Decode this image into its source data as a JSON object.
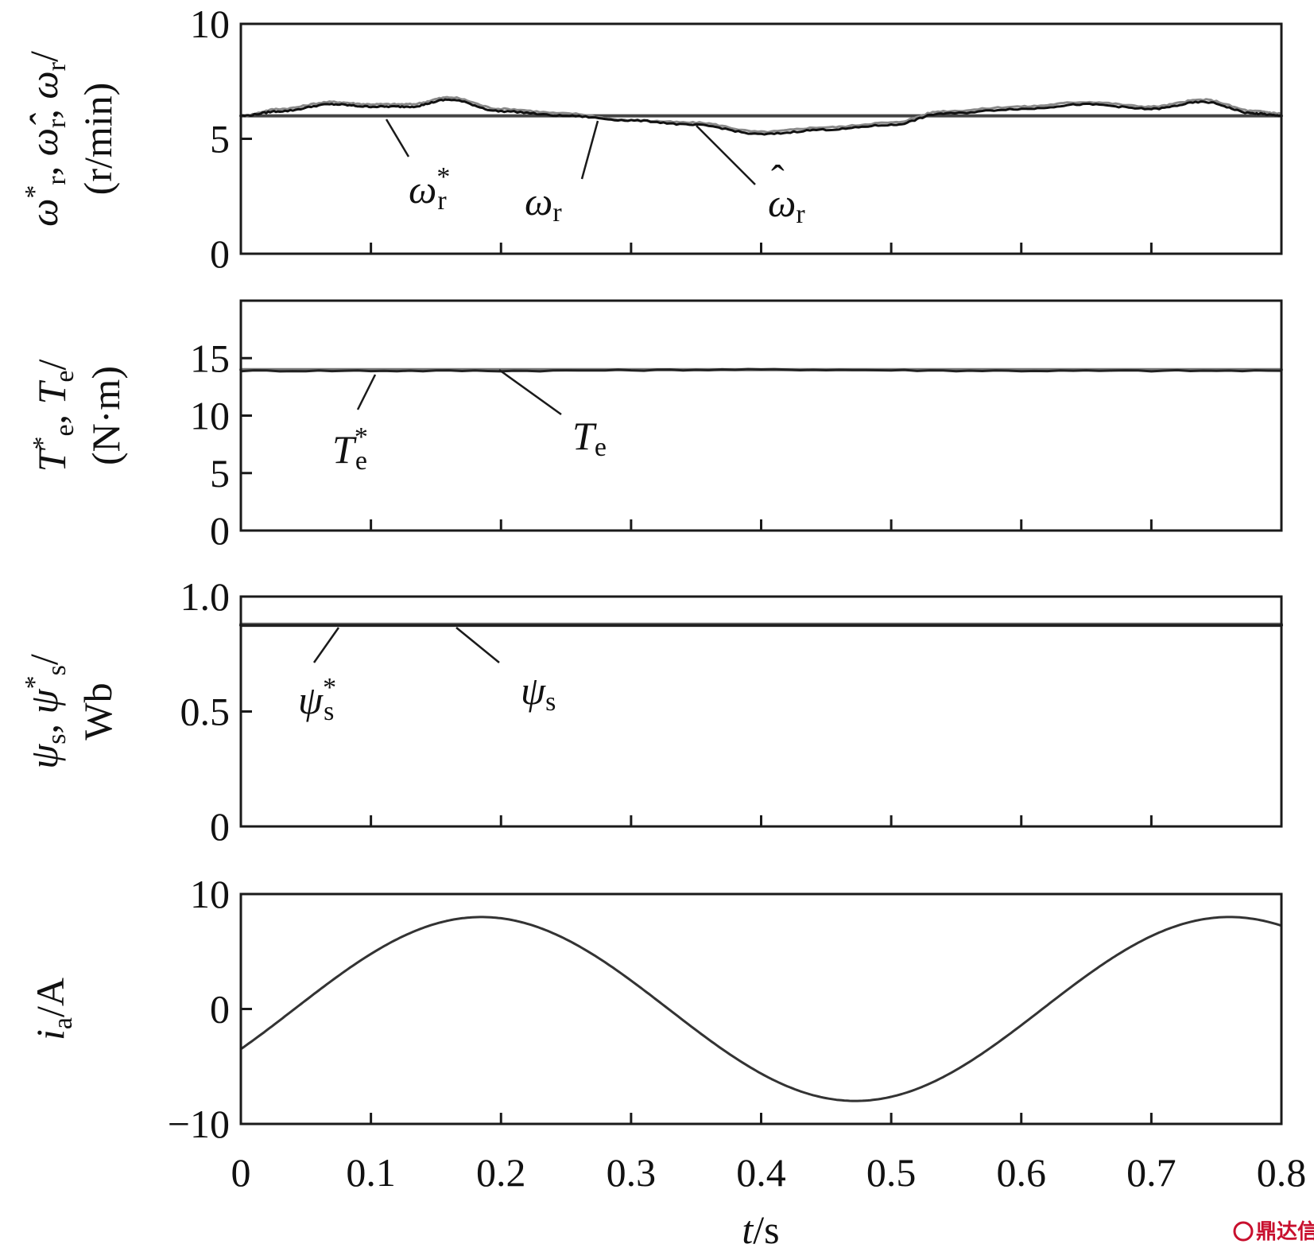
{
  "chart_data": [
    {
      "type": "line",
      "panel": "speed",
      "ylim": [
        0,
        10
      ],
      "yticks": [
        "0",
        "5",
        "10"
      ],
      "ytick_values": [
        0,
        5,
        10
      ],
      "ylabel_lines": [
        "ω*r, ω̂r, ωr/",
        "(r/min)"
      ],
      "series": [
        {
          "name": "ω*r",
          "x": [
            0,
            0.8
          ],
          "y": [
            6.0,
            6.0
          ],
          "color": "#444444"
        },
        {
          "name": "ωr",
          "x": [
            0,
            0.03,
            0.07,
            0.1,
            0.13,
            0.16,
            0.2,
            0.25,
            0.3,
            0.35,
            0.4,
            0.45,
            0.5,
            0.54,
            0.6,
            0.65,
            0.7,
            0.74,
            0.78,
            0.8
          ],
          "y": [
            6.0,
            6.3,
            6.6,
            6.5,
            6.5,
            6.8,
            6.3,
            6.1,
            5.8,
            5.7,
            5.3,
            5.5,
            5.7,
            6.2,
            6.4,
            6.6,
            6.4,
            6.7,
            6.2,
            6.1
          ],
          "color": "#8a8a8a"
        },
        {
          "name": "ω̂r",
          "x": [
            0,
            0.03,
            0.07,
            0.1,
            0.13,
            0.16,
            0.2,
            0.25,
            0.3,
            0.35,
            0.4,
            0.45,
            0.5,
            0.54,
            0.6,
            0.65,
            0.7,
            0.74,
            0.78,
            0.8
          ],
          "y": [
            6.0,
            6.2,
            6.5,
            6.4,
            6.4,
            6.7,
            6.2,
            6.0,
            5.8,
            5.6,
            5.2,
            5.4,
            5.6,
            6.1,
            6.3,
            6.5,
            6.3,
            6.6,
            6.1,
            6.0
          ],
          "color": "#111111"
        }
      ],
      "annotations": [
        {
          "label": "ω",
          "sub": "r",
          "sup": "*",
          "hat": false
        },
        {
          "label": "ω",
          "sub": "r",
          "sup": "",
          "hat": false
        },
        {
          "label": "ω",
          "sub": "r",
          "sup": "",
          "hat": true
        }
      ]
    },
    {
      "type": "line",
      "panel": "torque",
      "ylim": [
        0,
        20
      ],
      "yticks": [
        "0",
        "5",
        "10",
        "15"
      ],
      "ytick_values": [
        0,
        5,
        10,
        15
      ],
      "ylabel_lines": [
        "T*e, Te/",
        "(N·m)"
      ],
      "series": [
        {
          "name": "T*e",
          "x": [
            0,
            0.8
          ],
          "y": [
            14.0,
            14.0
          ],
          "color": "#777777"
        },
        {
          "name": "Te",
          "x": [
            0,
            0.2,
            0.4,
            0.6,
            0.8
          ],
          "y": [
            13.9,
            13.9,
            14.0,
            13.9,
            13.9
          ],
          "color": "#222222"
        }
      ],
      "annotations": [
        {
          "label": "T",
          "sub": "e",
          "sup": "*"
        },
        {
          "label": "T",
          "sub": "e",
          "sup": ""
        }
      ]
    },
    {
      "type": "line",
      "panel": "flux",
      "ylim": [
        0,
        1.0
      ],
      "yticks": [
        "0",
        "0.5",
        "1.0"
      ],
      "ytick_values": [
        0,
        0.5,
        1.0
      ],
      "ylabel_lines": [
        "ψs, ψ*s/",
        "Wb"
      ],
      "series": [
        {
          "name": "ψ*s",
          "x": [
            0,
            0.8
          ],
          "y": [
            0.88,
            0.88
          ],
          "color": "#777777"
        },
        {
          "name": "ψs",
          "x": [
            0,
            0.8
          ],
          "y": [
            0.875,
            0.875
          ],
          "color": "#222222"
        }
      ],
      "annotations": [
        {
          "label": "ψ",
          "sub": "s",
          "sup": "*"
        },
        {
          "label": "ψ",
          "sub": "s",
          "sup": ""
        }
      ]
    },
    {
      "type": "line",
      "panel": "current",
      "ylim": [
        -10,
        10
      ],
      "yticks": [
        "−10",
        "0",
        "10"
      ],
      "ytick_values": [
        -10,
        0,
        10
      ],
      "ylabel_lines": [
        "ia/A"
      ],
      "series": [
        {
          "name": "ia",
          "amplitude": 8,
          "period_s": 0.575,
          "peak_time_s": 0.185,
          "x_range": [
            0,
            0.8
          ],
          "color": "#333333"
        }
      ]
    }
  ],
  "xaxis": {
    "xlim": [
      0,
      0.8
    ],
    "xticks": [
      "0",
      "0.1",
      "0.2",
      "0.3",
      "0.4",
      "0.5",
      "0.6",
      "0.7",
      "0.8"
    ],
    "xtick_values": [
      0,
      0.1,
      0.2,
      0.3,
      0.4,
      0.5,
      0.6,
      0.7,
      0.8
    ],
    "xlabel_var": "t",
    "xlabel_unit": "/s"
  },
  "watermark": "鼎达信"
}
